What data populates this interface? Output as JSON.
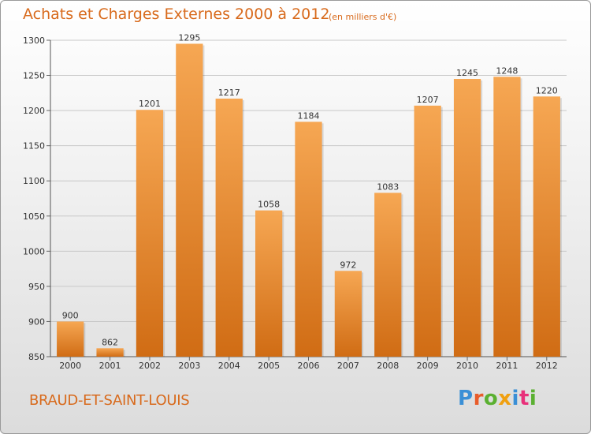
{
  "title": "Achats et Charges Externes 2000 à 2012",
  "unit_note": "(en milliers d'€)",
  "commune": "BRAUD-ET-SAINT-LOUIS",
  "logo": {
    "text": "Proxiti",
    "colors": [
      "#3a8fd6",
      "#e85c2a",
      "#5ab031",
      "#f0a010",
      "#3a8fd6",
      "#e8307a",
      "#5ab031"
    ]
  },
  "colors": {
    "bar_light": "#f6a753",
    "bar_dark": "#d06c14",
    "accent": "#d86a1c"
  },
  "chart_data": {
    "type": "bar",
    "title": "Achats et Charges Externes 2000 à 2012",
    "xlabel": "",
    "ylabel": "",
    "categories": [
      "2000",
      "2001",
      "2002",
      "2003",
      "2004",
      "2005",
      "2006",
      "2007",
      "2008",
      "2009",
      "2010",
      "2011",
      "2012"
    ],
    "values": [
      900,
      862,
      1201,
      1295,
      1217,
      1058,
      1184,
      972,
      1083,
      1207,
      1245,
      1248,
      1220
    ],
    "ylim": [
      850,
      1300
    ],
    "yticks": [
      850,
      900,
      950,
      1000,
      1050,
      1100,
      1150,
      1200,
      1250,
      1300
    ],
    "grid": true,
    "legend": "none"
  }
}
